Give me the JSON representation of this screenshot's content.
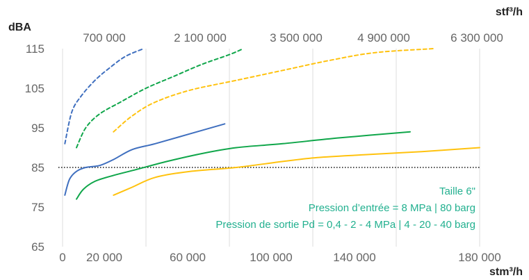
{
  "chart_data": {
    "type": "line",
    "units": {
      "y": "dBA",
      "x_bottom": "stm³/h",
      "x_top": "stf³/h"
    },
    "y_ticks": [
      "65",
      "75",
      "85",
      "95",
      "105",
      "115"
    ],
    "x_ticks_bottom": [
      "0",
      "20 000",
      "60 000",
      "100 000",
      "140 000",
      "180 000"
    ],
    "x_ticks_top": [
      "700 000",
      "2 100 000",
      "3 500 000",
      "4 900 000",
      "6 300 000"
    ],
    "ylim": [
      65,
      115
    ],
    "xlim": [
      0,
      180000
    ],
    "grid": "vertical",
    "reference_line": {
      "y": 85,
      "style": "dotted",
      "color": "#111111"
    },
    "annotations": [
      {
        "text": "Taille 6\"",
        "color": "#22b08f"
      },
      {
        "text": "Pression d’entrée = 8 MPa | 80 barg",
        "color": "#22b08f"
      },
      {
        "text": "Pression de sortie Pd = 0,4 - 2 - 4 MPa | 4 - 20 - 40 barg",
        "color": "#22b08f"
      }
    ],
    "series": [
      {
        "color": "#3f6fbf",
        "style": "dashed",
        "x": [
          1000,
          4000,
          8000,
          14000,
          20000,
          27000,
          35000
        ],
        "y": [
          91,
          99,
          103,
          107,
          110,
          113,
          115
        ]
      },
      {
        "color": "#0fa64a",
        "style": "dashed",
        "x": [
          6000,
          10000,
          16000,
          25000,
          36000,
          48000,
          60000,
          72000,
          78000
        ],
        "y": [
          90,
          95,
          98.5,
          101.5,
          105,
          108,
          111,
          113.5,
          115
        ]
      },
      {
        "color": "#ffc20e",
        "style": "dashed",
        "x": [
          22000,
          30000,
          40000,
          55000,
          75000,
          95000,
          115000,
          135000,
          160000
        ],
        "y": [
          94,
          98,
          101.5,
          104.5,
          107,
          109.5,
          112,
          114,
          115
        ]
      },
      {
        "color": "#3f6fbf",
        "style": "solid",
        "x": [
          1000,
          3000,
          6000,
          10000,
          16000,
          22000,
          30000,
          40000,
          55000,
          70000
        ],
        "y": [
          78,
          82,
          84,
          85,
          85.5,
          87,
          89.5,
          91,
          93.5,
          96
        ]
      },
      {
        "color": "#0fa64a",
        "style": "solid",
        "x": [
          6000,
          9000,
          14000,
          22000,
          32000,
          45000,
          60000,
          75000,
          95000,
          120000,
          150000
        ],
        "y": [
          77,
          79.5,
          81.5,
          83,
          84.5,
          86.5,
          88.5,
          90,
          91,
          92.5,
          94
        ]
      },
      {
        "color": "#ffc20e",
        "style": "solid",
        "x": [
          22000,
          30000,
          40000,
          55000,
          75000,
          95000,
          110000,
          130000,
          155000,
          180000
        ],
        "y": [
          78,
          80,
          82.5,
          84,
          85,
          86.5,
          87.5,
          88.2,
          89,
          90
        ]
      }
    ]
  }
}
